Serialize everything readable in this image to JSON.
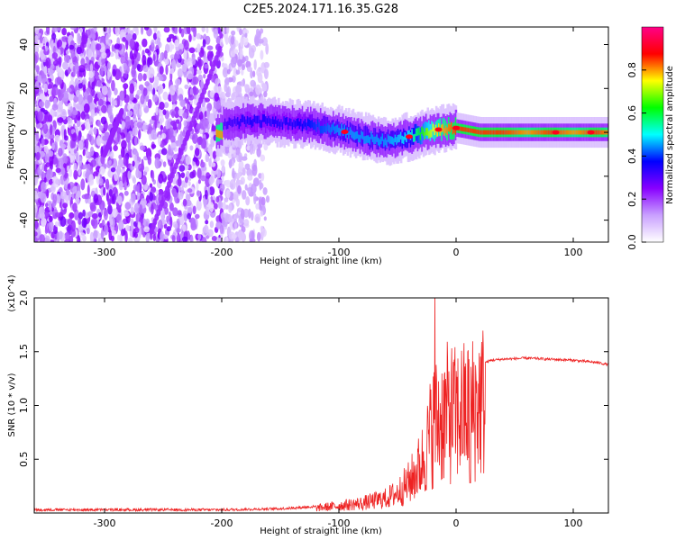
{
  "title": "C2E5.2024.171.16.35.G28",
  "chart_data": [
    {
      "type": "heatmap",
      "xlabel": "Height of straight line (km)",
      "ylabel": "Frequency (Hz)",
      "xlim": [
        -360,
        130
      ],
      "ylim": [
        -50,
        48
      ],
      "xticks": [
        -300,
        -200,
        -100,
        0,
        100
      ],
      "yticks": [
        -40,
        -20,
        0,
        20,
        40
      ],
      "colorbar": {
        "label": "Normalized spectral amplitude",
        "range": [
          0,
          1
        ],
        "ticks": [
          0.0,
          0.2,
          0.4,
          0.6,
          0.8
        ],
        "tick_labels": [
          "0.0",
          "0.2",
          "0.4",
          "0.6",
          "0.8"
        ],
        "colormap": [
          "#ffffff",
          "#c9a0ff",
          "#8800ff",
          "#0000ff",
          "#00ffff",
          "#00ff00",
          "#ffff00",
          "#ff0000",
          "#ff0088"
        ]
      },
      "ridge": {
        "x": [
          -200,
          -180,
          -160,
          -140,
          -120,
          -100,
          -80,
          -60,
          -40,
          -20,
          0,
          20,
          40,
          60,
          80,
          100,
          120,
          130
        ],
        "freq": [
          4,
          5,
          5,
          4,
          3,
          1,
          -2,
          -4,
          -2,
          1,
          2,
          0,
          0,
          0,
          0,
          0,
          0,
          0
        ],
        "amplitude": [
          0.3,
          0.35,
          0.35,
          0.35,
          0.4,
          0.45,
          0.45,
          0.45,
          0.5,
          0.75,
          0.85,
          0.85,
          0.85,
          0.8,
          0.85,
          0.8,
          0.85,
          0.8
        ]
      }
    },
    {
      "type": "line",
      "xlabel": "Height of straight line (km)",
      "ylabel": "SNR (10 * v/v)",
      "y_multiplier": "(x10^4)",
      "xlim": [
        -360,
        130
      ],
      "ylim": [
        0,
        2.0
      ],
      "xticks": [
        -300,
        -200,
        -100,
        0,
        100
      ],
      "yticks": [
        0.5,
        1.0,
        1.5,
        2.0
      ],
      "ytick_labels": [
        "0.5",
        "1.0",
        "1.5",
        "2.0"
      ],
      "series": [
        {
          "color": "#ee2222",
          "x": [
            -360,
            -300,
            -250,
            -200,
            -150,
            -120,
            -100,
            -80,
            -60,
            -50,
            -40,
            -30,
            -25,
            -20,
            -15,
            -10,
            -5,
            0,
            5,
            10,
            15,
            20,
            25,
            30,
            40,
            60,
            80,
            100,
            120,
            130
          ],
          "y": [
            0.03,
            0.03,
            0.03,
            0.03,
            0.04,
            0.06,
            0.09,
            0.12,
            0.18,
            0.25,
            0.38,
            0.6,
            0.8,
            1.1,
            1.15,
            1.2,
            1.25,
            1.2,
            1.25,
            1.25,
            1.3,
            1.38,
            1.4,
            1.42,
            1.43,
            1.44,
            1.43,
            1.42,
            1.4,
            1.38
          ]
        }
      ]
    }
  ]
}
